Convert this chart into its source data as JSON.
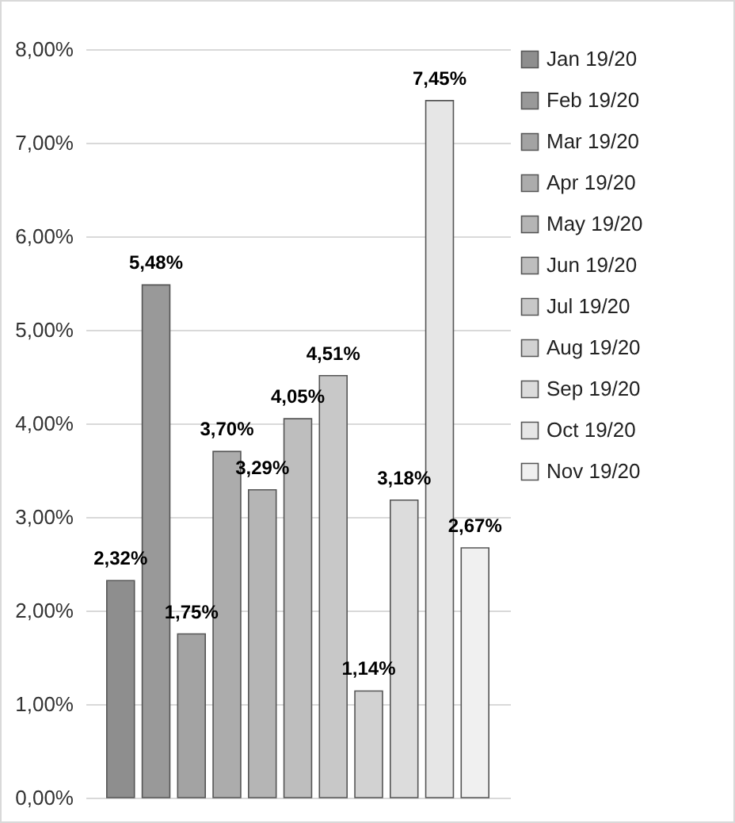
{
  "chart_data": {
    "type": "bar",
    "categories": [
      null
    ],
    "series": [
      {
        "name": "Jan 19/20",
        "color": "#8e8e8e",
        "values": [
          2.32
        ],
        "value_labels": [
          "2,32%"
        ]
      },
      {
        "name": "Feb 19/20",
        "color": "#999999",
        "values": [
          5.48
        ],
        "value_labels": [
          "5,48%"
        ]
      },
      {
        "name": "Mar 19/20",
        "color": "#a3a3a3",
        "values": [
          1.75
        ],
        "value_labels": [
          "1,75%"
        ]
      },
      {
        "name": "Apr 19/20",
        "color": "#acacac",
        "values": [
          3.7
        ],
        "value_labels": [
          "3,70%"
        ]
      },
      {
        "name": "May 19/20",
        "color": "#b5b5b5",
        "values": [
          3.29
        ],
        "value_labels": [
          "3,29%"
        ]
      },
      {
        "name": "Jun 19/20",
        "color": "#bebebe",
        "values": [
          4.05
        ],
        "value_labels": [
          "4,05%"
        ]
      },
      {
        "name": "Jul 19/20",
        "color": "#c8c8c8",
        "values": [
          4.51
        ],
        "value_labels": [
          "4,51%"
        ]
      },
      {
        "name": "Aug 19/20",
        "color": "#d2d2d2",
        "values": [
          1.14
        ],
        "value_labels": [
          "1,14%"
        ]
      },
      {
        "name": "Sep 19/20",
        "color": "#dcdcdc",
        "values": [
          3.18
        ],
        "value_labels": [
          "3,18%"
        ]
      },
      {
        "name": "Oct 19/20",
        "color": "#e6e6e6",
        "values": [
          7.45
        ],
        "value_labels": [
          "7,45%"
        ]
      },
      {
        "name": "Nov 19/20",
        "color": "#f0f0f0",
        "values": [
          2.67
        ],
        "value_labels": [
          "2,67%"
        ]
      }
    ],
    "ylim": [
      0,
      8
    ],
    "yticks": [
      {
        "value": 0,
        "label": "0,00%"
      },
      {
        "value": 1,
        "label": "1,00%"
      },
      {
        "value": 2,
        "label": "2,00%"
      },
      {
        "value": 3,
        "label": "3,00%"
      },
      {
        "value": 4,
        "label": "4,00%"
      },
      {
        "value": 5,
        "label": "5,00%"
      },
      {
        "value": 6,
        "label": "6,00%"
      },
      {
        "value": 7,
        "label": "7,00%"
      },
      {
        "value": 8,
        "label": "8,00%"
      }
    ],
    "grid": "y",
    "legend": "right",
    "tick_labels": "y"
  }
}
